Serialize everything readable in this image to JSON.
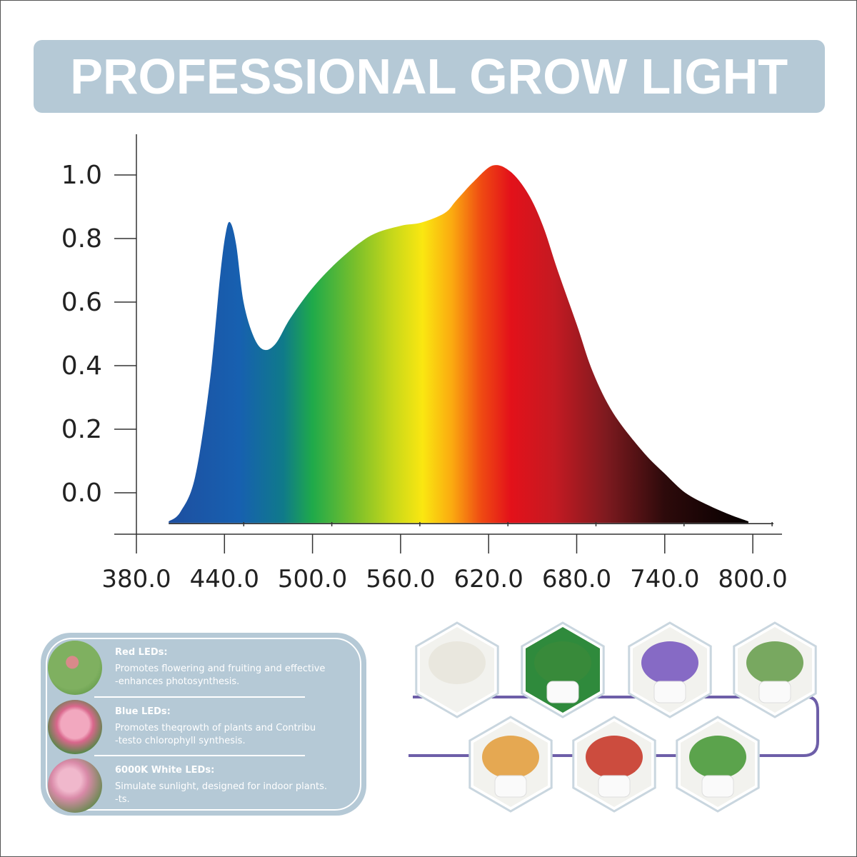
{
  "banner": {
    "title": "PROFESSIONAL GROW LIGHT",
    "background": "#b5c9d6"
  },
  "chart_data": {
    "type": "area",
    "title": "",
    "xlabel": "",
    "ylabel": "",
    "xlim": [
      380,
      810
    ],
    "ylim": [
      -0.13,
      1.12
    ],
    "x_ticks": [
      "380.0",
      "440.0",
      "500.0",
      "560.0",
      "620.0",
      "680.0",
      "740.0",
      "800.0"
    ],
    "y_ticks": [
      "1.0",
      "0.8",
      "0.6",
      "0.4",
      "0.2",
      "0.0"
    ],
    "series": [
      {
        "x": [
          402,
          410,
          420,
          430,
          437,
          441,
          444,
          448,
          453,
          460,
          467,
          475,
          485,
          501,
          520,
          540,
          560,
          574,
          590,
          598,
          610,
          623,
          635,
          647,
          657,
          667,
          680,
          691,
          705,
          725,
          740,
          754,
          770,
          785,
          797
        ],
        "y": [
          -0.09,
          -0.06,
          0.05,
          0.35,
          0.68,
          0.82,
          0.85,
          0.78,
          0.6,
          0.49,
          0.45,
          0.47,
          0.55,
          0.65,
          0.74,
          0.81,
          0.84,
          0.85,
          0.88,
          0.92,
          0.98,
          1.03,
          1.01,
          0.94,
          0.84,
          0.7,
          0.53,
          0.38,
          0.25,
          0.13,
          0.06,
          0.0,
          -0.04,
          -0.07,
          -0.09
        ]
      }
    ],
    "gradient": [
      {
        "wl": 402,
        "color": "#1e4fa0"
      },
      {
        "wl": 450,
        "color": "#1760b0"
      },
      {
        "wl": 480,
        "color": "#0f7a8a"
      },
      {
        "wl": 500,
        "color": "#1faa4a"
      },
      {
        "wl": 530,
        "color": "#7cc02a"
      },
      {
        "wl": 555,
        "color": "#c8d81a"
      },
      {
        "wl": 575,
        "color": "#fae711"
      },
      {
        "wl": 595,
        "color": "#fbaa10"
      },
      {
        "wl": 615,
        "color": "#ef4a12"
      },
      {
        "wl": 635,
        "color": "#e3111a"
      },
      {
        "wl": 665,
        "color": "#c41a22"
      },
      {
        "wl": 700,
        "color": "#7e1a1f"
      },
      {
        "wl": 740,
        "color": "#2d0a0b"
      },
      {
        "wl": 797,
        "color": "#050000"
      }
    ]
  },
  "leds": [
    {
      "title": "Red LEDs:",
      "lines": [
        "Promotes flowering and fruiting and effective",
        "-enhances photosynthesis."
      ],
      "pic_color": "#6a9c4a"
    },
    {
      "title": "Blue LEDs:",
      "lines": [
        "Promotes theqrowth of plants and Contribu",
        "-testo chlorophyll synthesis."
      ],
      "pic_color": "#d97a98"
    },
    {
      "title": "6000K White LEDs:",
      "lines": [
        "Simulate sunlight, designed for indoor plants.",
        "-ts."
      ],
      "pic_color": "#c98aa5"
    }
  ],
  "panel_color": "#b5c9d6",
  "line_color": "#6d5ea8",
  "plants": [
    {
      "name": "white-flowers",
      "color": "#e8e6dc"
    },
    {
      "name": "gardenia-pot",
      "color": "#3a8a3a"
    },
    {
      "name": "purple-flower-pot",
      "color": "#7a5bc0"
    },
    {
      "name": "lavender-pot",
      "color": "#6aa050"
    },
    {
      "name": "orange-lily-vase",
      "color": "#e3a040"
    },
    {
      "name": "tomato-plant",
      "color": "#c83a2a"
    },
    {
      "name": "strawberry-pot",
      "color": "#4a9a3a"
    }
  ]
}
